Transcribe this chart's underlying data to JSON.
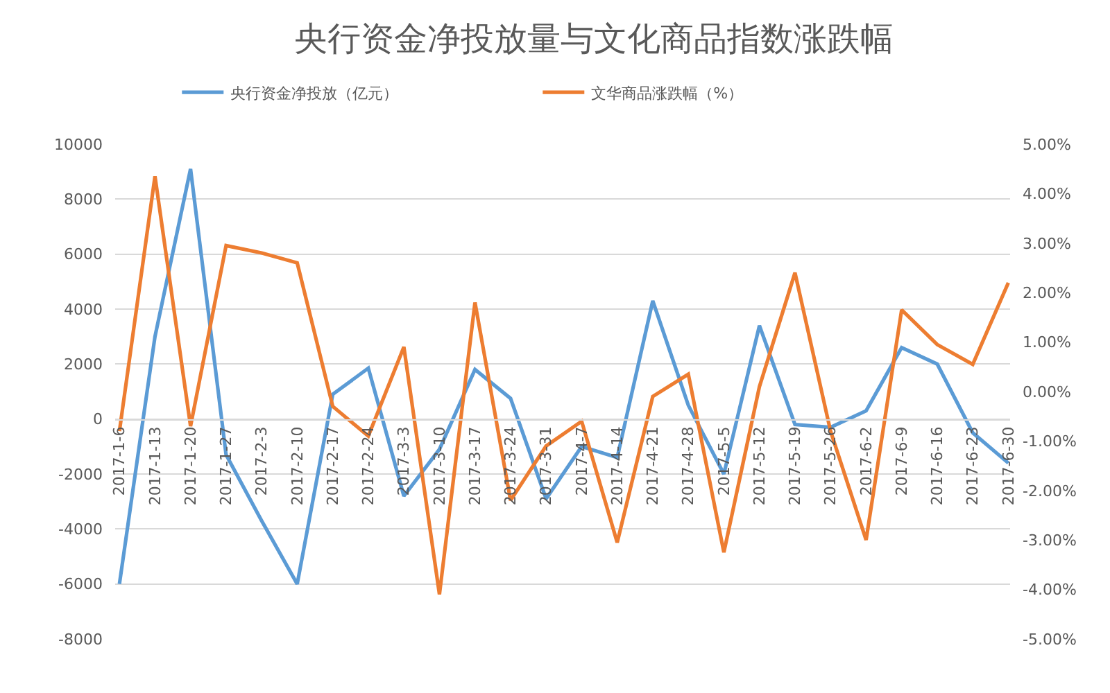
{
  "chart_data": {
    "type": "line",
    "title": "央行资金净投放量与文化商品指数涨跌幅",
    "categories": [
      "2017-1-6",
      "2017-1-13",
      "2017-1-20",
      "2017-1-27",
      "2017-2-3",
      "2017-2-10",
      "2017-2-17",
      "2017-2-24",
      "2017-3-3",
      "2017-3-10",
      "2017-3-17",
      "2017-3-24",
      "2017-3-31",
      "2017-4-7",
      "2017-4-14",
      "2017-4-21",
      "2017-4-28",
      "2017-5-5",
      "2017-5-12",
      "2017-5-19",
      "2017-5-26",
      "2017-6-2",
      "2017-6-9",
      "2017-6-16",
      "2017-6-23",
      "2017-6-30"
    ],
    "series": [
      {
        "name": "央行资金净投放（亿元）",
        "color": "#5b9bd5",
        "values": [
          -6000,
          3000,
          9100,
          -1300,
          -3700,
          -6000,
          900,
          1850,
          -2800,
          -1100,
          1800,
          750,
          -2900,
          -1000,
          -1400,
          4300,
          500,
          -2000,
          3400,
          -200,
          -300,
          300,
          2600,
          2000,
          -500,
          -1600
        ]
      },
      {
        "name": "文华商品涨跌幅（%）",
        "color": "#ed7d31",
        "axis": "y2",
        "values": [
          -0.8,
          4.35,
          -0.7,
          2.95,
          2.8,
          2.6,
          -0.3,
          -0.9,
          0.9,
          -4.1,
          1.8,
          -2.2,
          -1.1,
          -0.6,
          -3.05,
          -0.1,
          0.35,
          -3.25,
          0.1,
          2.4,
          -0.8,
          -3.0,
          1.65,
          0.95,
          0.55,
          2.2
        ]
      }
    ],
    "ylim": [
      -8000,
      10000
    ],
    "yticks": [
      -8000,
      -6000,
      -4000,
      -2000,
      0,
      2000,
      4000,
      6000,
      8000,
      10000
    ],
    "y2lim": [
      -5,
      5
    ],
    "y2ticks": [
      {
        "value": -5,
        "label": "-5.00%"
      },
      {
        "value": -4,
        "label": "-4.00%"
      },
      {
        "value": -3,
        "label": "-3.00%"
      },
      {
        "value": -2,
        "label": "-2.00%"
      },
      {
        "value": -1,
        "label": "-1.00%"
      },
      {
        "value": 0,
        "label": "0.00%"
      },
      {
        "value": 1,
        "label": "1.00%"
      },
      {
        "value": 2,
        "label": "2.00%"
      },
      {
        "value": 3,
        "label": "3.00%"
      },
      {
        "value": 4,
        "label": "4.00%"
      },
      {
        "value": 5,
        "label": "5.00%"
      }
    ],
    "grid": "y",
    "legend": "top",
    "marker": "none",
    "line_style": "solid"
  }
}
